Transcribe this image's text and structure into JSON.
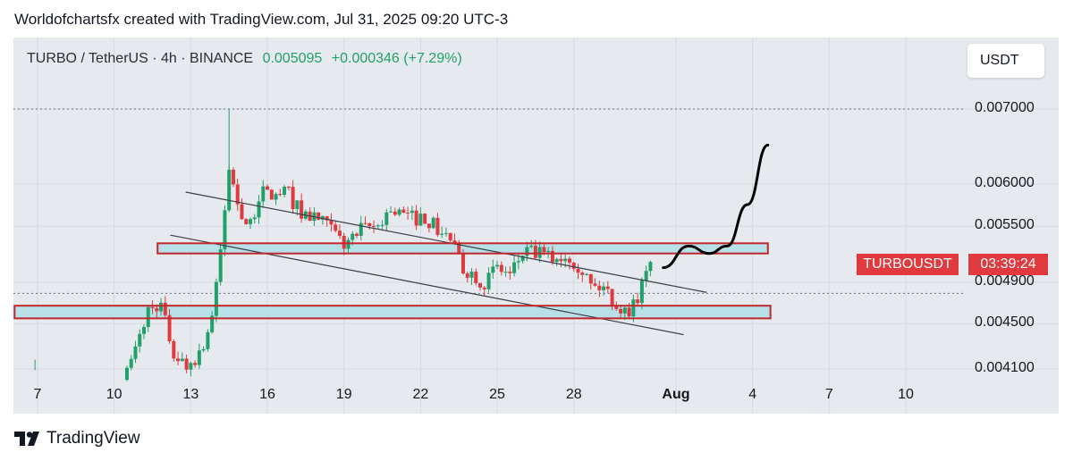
{
  "credit": "Worldofchartsfx created with TradingView.com, Jul 31, 2025 09:20 UTC-3",
  "header": {
    "symbol": "TURBO / TetherUS · 4h · BINANCE",
    "price": "0.005095",
    "change": "+0.000346 (+7.29%)"
  },
  "currency": "USDT",
  "price_tag": {
    "symbol": "TURBOUSDT",
    "countdown": "03:39:24"
  },
  "brand": {
    "logo_icon": "tradingview-logo-icon",
    "name": "TradingView"
  },
  "colors": {
    "up": "#22a06b",
    "down": "#e03a3e",
    "zone_fill": "#b7e0e8",
    "zone_border": "#c0282d",
    "background": "#e6e9ee"
  },
  "chart_data": {
    "type": "candlestick",
    "title": "TURBO / TetherUS · 4h · BINANCE",
    "y_scale": "log",
    "ylim": [
      0.00409,
      0.0074
    ],
    "y_ticks": [
      "0.007000",
      "0.006000",
      "0.005500",
      "0.004900",
      "0.004500",
      "0.004100"
    ],
    "x_ticks": [
      {
        "label": "7",
        "day": 7
      },
      {
        "label": "10",
        "day": 10
      },
      {
        "label": "13",
        "day": 13
      },
      {
        "label": "16",
        "day": 16
      },
      {
        "label": "19",
        "day": 19
      },
      {
        "label": "22",
        "day": 22
      },
      {
        "label": "25",
        "day": 25
      },
      {
        "label": "28",
        "day": 28
      },
      {
        "label": "Aug",
        "day": 32,
        "bold": true
      },
      {
        "label": "4",
        "day": 35
      },
      {
        "label": "7",
        "day": 38
      },
      {
        "label": "10",
        "day": 41
      }
    ],
    "xlim_days": [
      6.1,
      42.5
    ],
    "price_path": [
      [
        7.0,
        0.00412
      ],
      [
        10.5,
        0.00405
      ],
      [
        10.9,
        0.0043
      ],
      [
        11.3,
        0.00462
      ],
      [
        11.8,
        0.0047
      ],
      [
        12.3,
        0.00425
      ],
      [
        12.8,
        0.00412
      ],
      [
        13.4,
        0.00425
      ],
      [
        13.9,
        0.00462
      ],
      [
        14.2,
        0.0053
      ],
      [
        14.5,
        0.0062
      ],
      [
        14.8,
        0.0058
      ],
      [
        15.3,
        0.00545
      ],
      [
        15.7,
        0.0059
      ],
      [
        16.3,
        0.00585
      ],
      [
        16.8,
        0.0059
      ],
      [
        17.3,
        0.00565
      ],
      [
        17.9,
        0.0056
      ],
      [
        18.5,
        0.00545
      ],
      [
        19.0,
        0.0053
      ],
      [
        19.7,
        0.00545
      ],
      [
        20.3,
        0.0055
      ],
      [
        20.8,
        0.0057
      ],
      [
        21.5,
        0.0056
      ],
      [
        22.2,
        0.0056
      ],
      [
        22.7,
        0.00545
      ],
      [
        23.2,
        0.00535
      ],
      [
        23.6,
        0.00505
      ],
      [
        24.0,
        0.005
      ],
      [
        24.5,
        0.0049
      ],
      [
        25.0,
        0.00505
      ],
      [
        25.5,
        0.00497
      ],
      [
        26.0,
        0.0052
      ],
      [
        26.6,
        0.0052
      ],
      [
        27.1,
        0.00515
      ],
      [
        27.8,
        0.00518
      ],
      [
        28.3,
        0.00505
      ],
      [
        28.7,
        0.00485
      ],
      [
        29.2,
        0.00485
      ],
      [
        29.6,
        0.0047
      ],
      [
        30.0,
        0.0046
      ],
      [
        30.4,
        0.0047
      ],
      [
        30.8,
        0.00495
      ],
      [
        31.1,
        0.005095
      ]
    ],
    "lines": [
      {
        "name": "channel-upper",
        "from": [
          12.8,
          0.0059
        ],
        "to": [
          33.2,
          0.0048
        ]
      },
      {
        "name": "channel-lower",
        "from": [
          12.2,
          0.0054
        ],
        "to": [
          32.3,
          0.0044
        ]
      },
      {
        "name": "dotted-high",
        "price": 0.007
      },
      {
        "name": "dotted-low",
        "price": 0.00479
      }
    ],
    "zones": [
      {
        "name": "resistance-zone",
        "day_from": 11.7,
        "day_to": 35.6,
        "price_from": 0.0052,
        "price_to": 0.00531
      },
      {
        "name": "support-zone",
        "day_from": 6.1,
        "day_to": 35.7,
        "price_from": 0.00455,
        "price_to": 0.00467
      }
    ],
    "projection": [
      [
        31.5,
        0.00505
      ],
      [
        32.5,
        0.00528
      ],
      [
        33.3,
        0.0052
      ],
      [
        34.0,
        0.00528
      ],
      [
        34.8,
        0.00575
      ],
      [
        35.6,
        0.0065
      ]
    ]
  }
}
